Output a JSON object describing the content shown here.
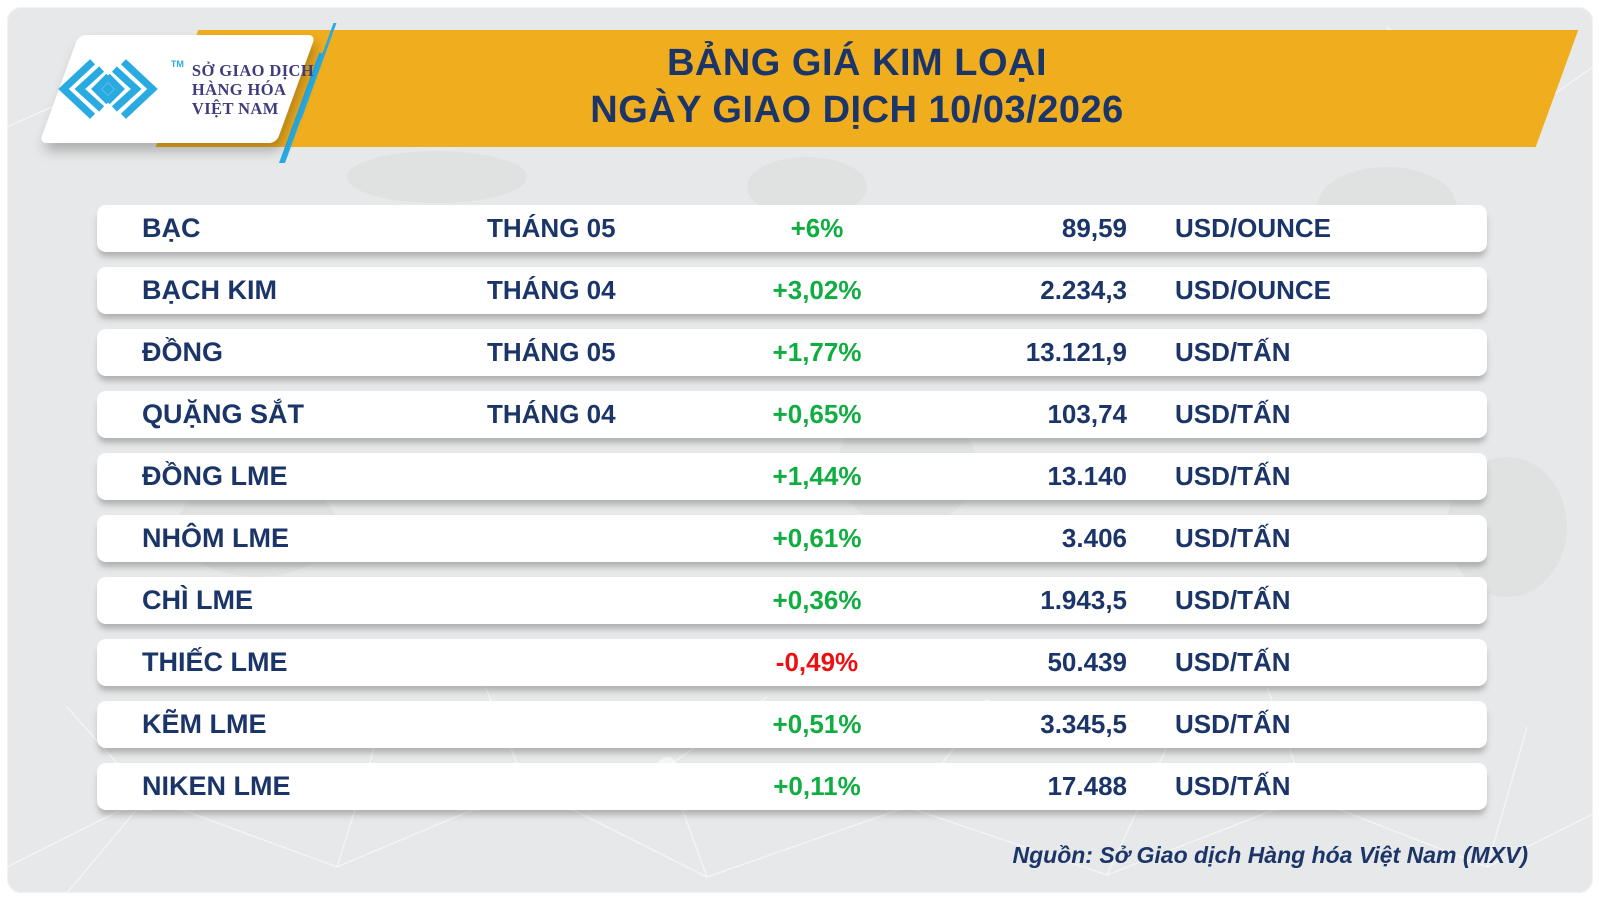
{
  "header": {
    "title_line1": "BẢNG GIÁ KIM LOẠI",
    "title_line2": "NGÀY GIAO DỊCH 10/03/2026",
    "logo": {
      "trademark": "TM",
      "org_line1": "SỞ GIAO DỊCH",
      "org_line2": "HÀNG HÓA",
      "org_line3": "VIỆT NAM"
    }
  },
  "table": {
    "rows": [
      {
        "name": "BẠC",
        "month": "THÁNG 05",
        "change": "+6%",
        "direction": "up",
        "price": "89,59",
        "unit": "USD/OUNCE"
      },
      {
        "name": "BẠCH KIM",
        "month": "THÁNG 04",
        "change": "+3,02%",
        "direction": "up",
        "price": "2.234,3",
        "unit": "USD/OUNCE"
      },
      {
        "name": "ĐỒNG",
        "month": "THÁNG 05",
        "change": "+1,77%",
        "direction": "up",
        "price": "13.121,9",
        "unit": "USD/TẤN"
      },
      {
        "name": "QUẶNG SẮT",
        "month": "THÁNG 04",
        "change": "+0,65%",
        "direction": "up",
        "price": "103,74",
        "unit": "USD/TẤN"
      },
      {
        "name": "ĐỒNG LME",
        "month": "",
        "change": "+1,44%",
        "direction": "up",
        "price": "13.140",
        "unit": "USD/TẤN"
      },
      {
        "name": "NHÔM LME",
        "month": "",
        "change": "+0,61%",
        "direction": "up",
        "price": "3.406",
        "unit": "USD/TẤN"
      },
      {
        "name": "CHÌ LME",
        "month": "",
        "change": "+0,36%",
        "direction": "up",
        "price": "1.943,5",
        "unit": "USD/TẤN"
      },
      {
        "name": "THIẾC LME",
        "month": "",
        "change": "-0,49%",
        "direction": "down",
        "price": "50.439",
        "unit": "USD/TẤN"
      },
      {
        "name": "KẼM LME",
        "month": "",
        "change": "+0,51%",
        "direction": "up",
        "price": "3.345,5",
        "unit": "USD/TẤN"
      },
      {
        "name": "NIKEN LME",
        "month": "",
        "change": "+0,11%",
        "direction": "up",
        "price": "17.488",
        "unit": "USD/TẤN"
      }
    ]
  },
  "footer": {
    "source": "Nguồn: Sở Giao dịch Hàng hóa Việt Nam (MXV)"
  },
  "colors": {
    "accent_yellow": "#f0ae1e",
    "navy": "#1c3569",
    "green": "#10ad41",
    "red": "#ec1111",
    "logo_cyan": "#29abe2",
    "logo_indigo": "#3e3c7d",
    "background_gray": "#e7e8e9"
  },
  "chart_data": {
    "type": "table",
    "title": "BẢNG GIÁ KIM LOẠI — NGÀY GIAO DỊCH 10/03/2026",
    "columns": [
      "commodity",
      "contract_month",
      "percent_change",
      "price",
      "unit"
    ],
    "rows": [
      [
        "BẠC",
        "THÁNG 05",
        "+6%",
        "89,59",
        "USD/OUNCE"
      ],
      [
        "BẠCH KIM",
        "THÁNG 04",
        "+3,02%",
        "2.234,3",
        "USD/OUNCE"
      ],
      [
        "ĐỒNG",
        "THÁNG 05",
        "+1,77%",
        "13.121,9",
        "USD/TẤN"
      ],
      [
        "QUẶNG SẮT",
        "THÁNG 04",
        "+0,65%",
        "103,74",
        "USD/TẤN"
      ],
      [
        "ĐỒNG LME",
        "",
        "+1,44%",
        "13.140",
        "USD/TẤN"
      ],
      [
        "NHÔM LME",
        "",
        "+0,61%",
        "3.406",
        "USD/TẤN"
      ],
      [
        "CHÌ LME",
        "",
        "+0,36%",
        "1.943,5",
        "USD/TẤN"
      ],
      [
        "THIẾC LME",
        "",
        "-0,49%",
        "50.439",
        "USD/TẤN"
      ],
      [
        "KẼM LME",
        "",
        "+0,51%",
        "3.345,5",
        "USD/TẤN"
      ],
      [
        "NIKEN LME",
        "",
        "+0,11%",
        "17.488",
        "USD/TẤN"
      ]
    ],
    "notes": "percent_change green when positive, red when negative; source: Sở Giao dịch Hàng hóa Việt Nam (MXV)"
  }
}
